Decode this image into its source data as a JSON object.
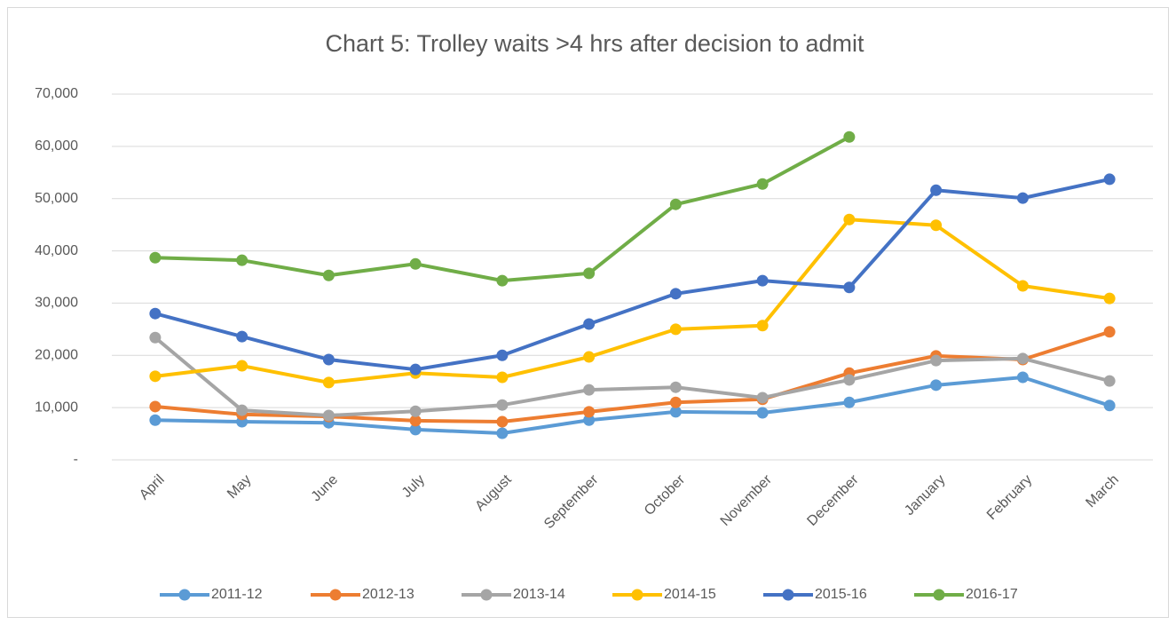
{
  "chart_data": {
    "type": "line",
    "title": "Chart 5: Trolley waits >4 hrs after decision to admit",
    "categories": [
      "April",
      "May",
      "June",
      "July",
      "August",
      "September",
      "October",
      "November",
      "December",
      "January",
      "February",
      "March"
    ],
    "series": [
      {
        "name": "2011-12",
        "color": "#5b9bd5",
        "values": [
          7600,
          7300,
          7100,
          5800,
          5100,
          7600,
          9200,
          9000,
          11000,
          14300,
          15800,
          10400
        ]
      },
      {
        "name": "2012-13",
        "color": "#ed7d31",
        "values": [
          10200,
          8700,
          8300,
          7500,
          7300,
          9200,
          11000,
          11600,
          16600,
          19900,
          19200,
          24500
        ]
      },
      {
        "name": "2013-14",
        "color": "#a5a5a5",
        "values": [
          23400,
          9500,
          8500,
          9300,
          10500,
          13400,
          13900,
          11900,
          15300,
          19000,
          19400,
          15100
        ]
      },
      {
        "name": "2014-15",
        "color": "#ffc000",
        "values": [
          16000,
          18000,
          14800,
          16600,
          15800,
          19700,
          25000,
          25700,
          46000,
          44900,
          33300,
          30900
        ]
      },
      {
        "name": "2015-16",
        "color": "#4472c4",
        "values": [
          28000,
          23600,
          19200,
          17300,
          20000,
          26000,
          31800,
          34300,
          33000,
          51600,
          50100,
          53700
        ]
      },
      {
        "name": "2016-17",
        "color": "#70ad47",
        "values": [
          38700,
          38200,
          35300,
          37500,
          34300,
          35700,
          48900,
          52800,
          61800,
          null,
          null,
          null
        ]
      }
    ],
    "ylim": [
      0,
      70000
    ],
    "yticks": [
      {
        "value": 0,
        "label": "-"
      },
      {
        "value": 10000,
        "label": "10,000"
      },
      {
        "value": 20000,
        "label": "20,000"
      },
      {
        "value": 30000,
        "label": "30,000"
      },
      {
        "value": 40000,
        "label": "40,000"
      },
      {
        "value": 50000,
        "label": "50,000"
      },
      {
        "value": 60000,
        "label": "60,000"
      },
      {
        "value": 70000,
        "label": "70,000"
      }
    ],
    "grid": true,
    "legend": "bottom"
  }
}
